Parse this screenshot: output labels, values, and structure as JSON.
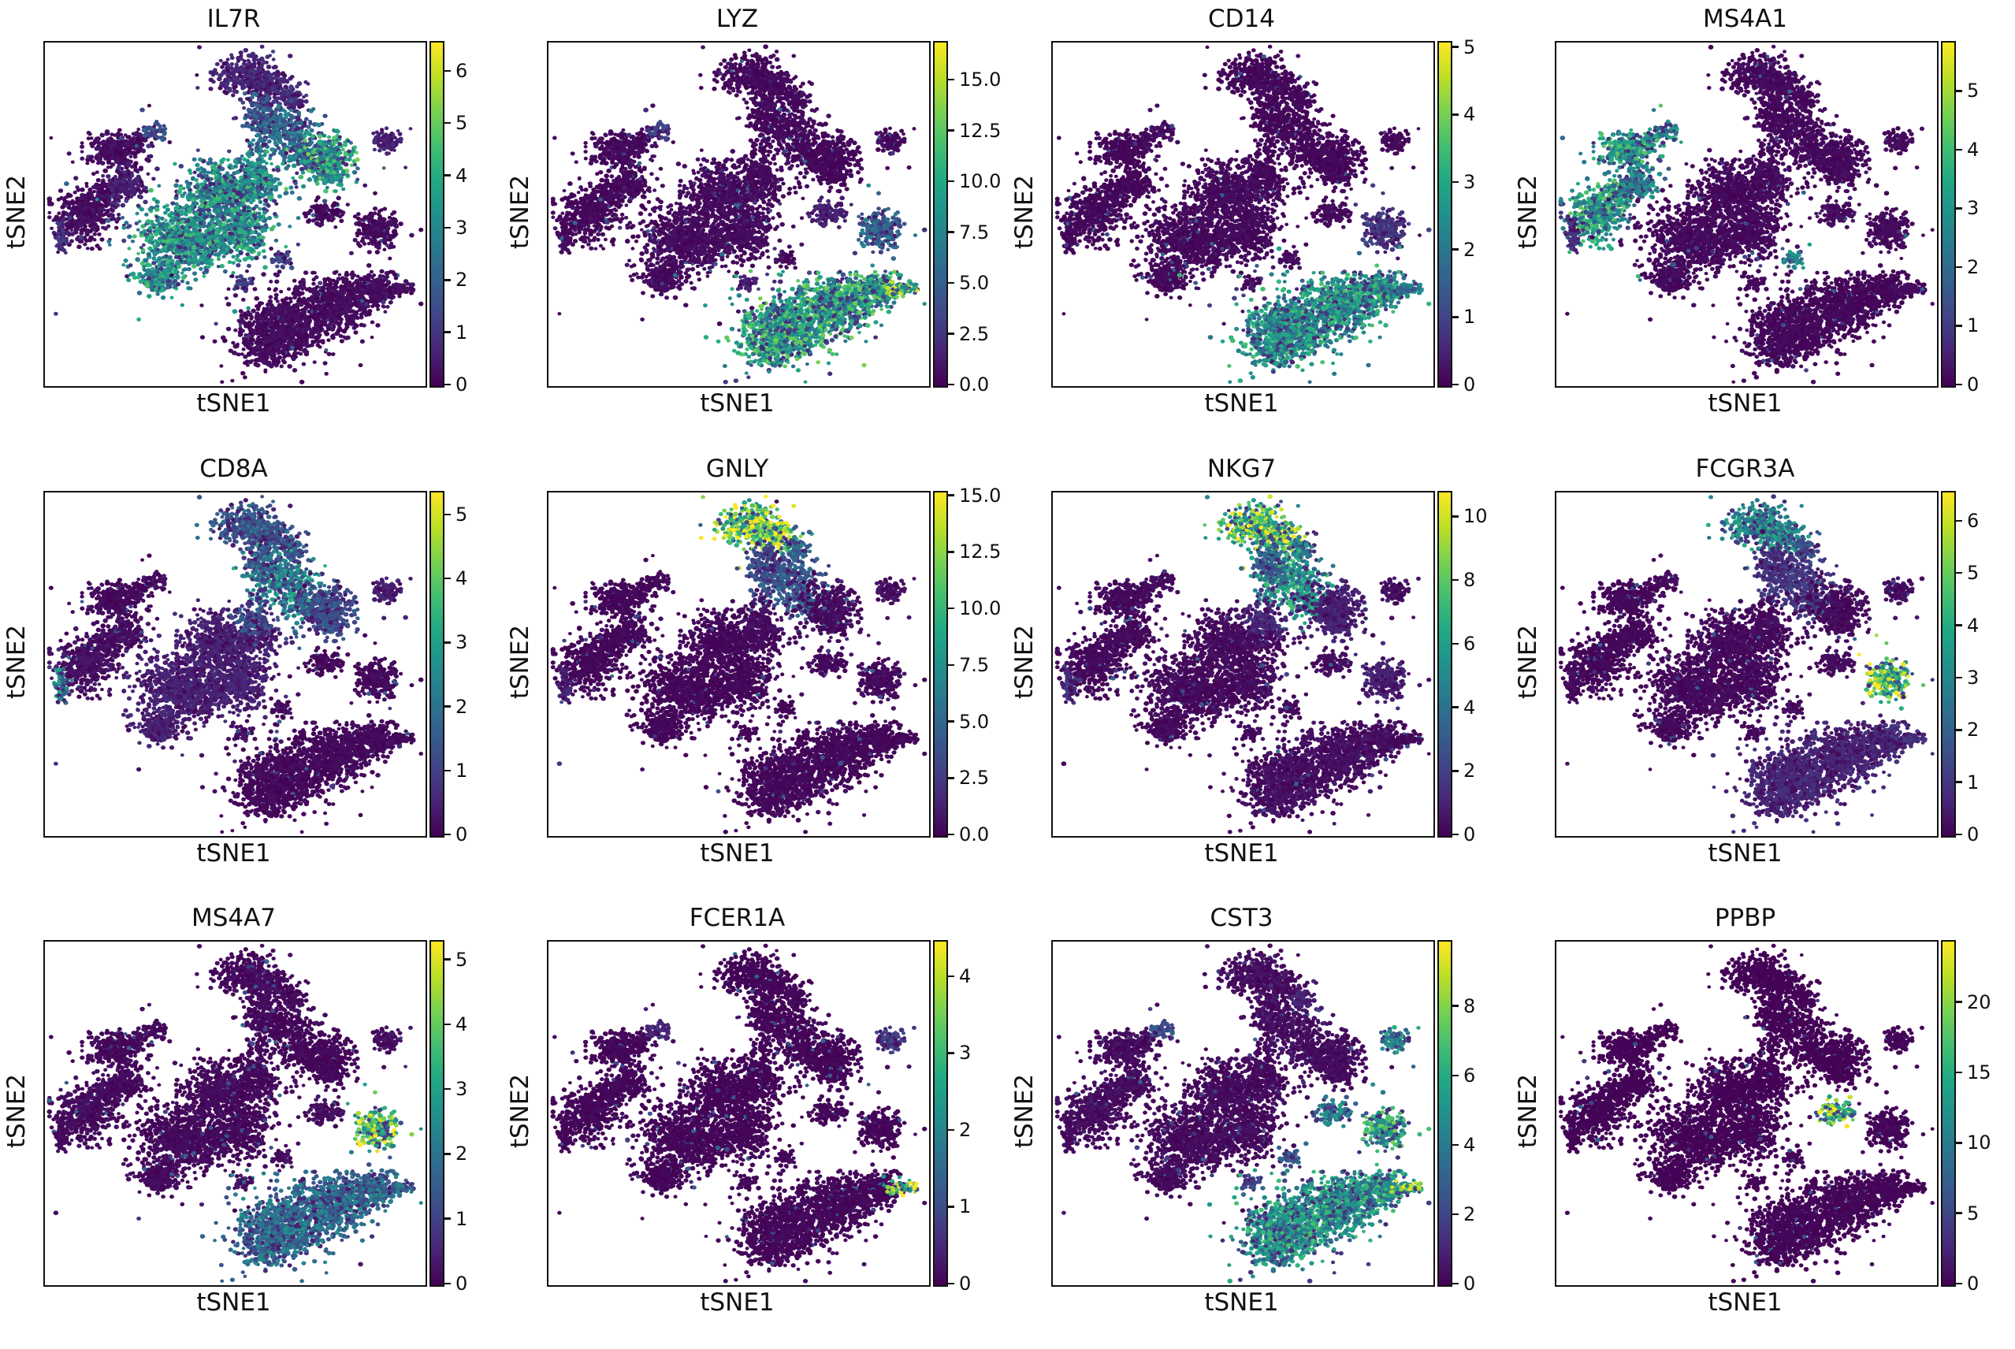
{
  "chart_data": {
    "type": "scatter",
    "description": "Grid of 12 tSNE feature plots of single-cell gene expression; identical 2-D embedding in every panel, points colored by per-gene expression on a viridis scale.",
    "layout": {
      "rows": 3,
      "cols": 4,
      "grid": true,
      "legend_position": "right-colorbar-per-panel"
    },
    "xlabel": "tSNE1",
    "ylabel": "tSNE2",
    "colormap": "viridis",
    "viridis_stops": [
      "#440154",
      "#482475",
      "#414487",
      "#355f8d",
      "#2a788e",
      "#21918c",
      "#22a884",
      "#44bf70",
      "#7ad151",
      "#bddf26",
      "#fde725"
    ],
    "panels": [
      {
        "gene": "IL7R",
        "colorbar_max": 6.57,
        "tick_values": [
          0,
          1,
          2,
          3,
          4,
          5,
          6
        ],
        "tick_labels": [
          "0",
          "1",
          "2",
          "3",
          "4",
          "5",
          "6"
        ]
      },
      {
        "gene": "LYZ",
        "colorbar_max": 16.9,
        "tick_values": [
          0,
          2.5,
          5,
          7.5,
          10,
          12.5,
          15
        ],
        "tick_labels": [
          "0.0",
          "2.5",
          "5.0",
          "7.5",
          "10.0",
          "12.5",
          "15.0"
        ]
      },
      {
        "gene": "CD14",
        "colorbar_max": 5.09,
        "tick_values": [
          0,
          1,
          2,
          3,
          4,
          5
        ],
        "tick_labels": [
          "0",
          "1",
          "2",
          "3",
          "4",
          "5"
        ]
      },
      {
        "gene": "MS4A1",
        "colorbar_max": 5.85,
        "tick_values": [
          0,
          1,
          2,
          3,
          4,
          5
        ],
        "tick_labels": [
          "0",
          "1",
          "2",
          "3",
          "4",
          "5"
        ]
      },
      {
        "gene": "CD8A",
        "colorbar_max": 5.37,
        "tick_values": [
          0,
          1,
          2,
          3,
          4,
          5
        ],
        "tick_labels": [
          "0",
          "1",
          "2",
          "3",
          "4",
          "5"
        ]
      },
      {
        "gene": "GNLY",
        "colorbar_max": 15.2,
        "tick_values": [
          0,
          2.5,
          5,
          7.5,
          10,
          12.5,
          15
        ],
        "tick_labels": [
          "0.0",
          "2.5",
          "5.0",
          "7.5",
          "10.0",
          "12.5",
          "15.0"
        ]
      },
      {
        "gene": "NKG7",
        "colorbar_max": 10.8,
        "tick_values": [
          0,
          2,
          4,
          6,
          8,
          10
        ],
        "tick_labels": [
          "0",
          "2",
          "4",
          "6",
          "8",
          "10"
        ]
      },
      {
        "gene": "FCGR3A",
        "colorbar_max": 6.57,
        "tick_values": [
          0,
          1,
          2,
          3,
          4,
          5,
          6
        ],
        "tick_labels": [
          "0",
          "1",
          "2",
          "3",
          "4",
          "5",
          "6"
        ]
      },
      {
        "gene": "MS4A7",
        "colorbar_max": 5.3,
        "tick_values": [
          0,
          1,
          2,
          3,
          4,
          5
        ],
        "tick_labels": [
          "0",
          "1",
          "2",
          "3",
          "4",
          "5"
        ]
      },
      {
        "gene": "FCER1A",
        "colorbar_max": 4.47,
        "tick_values": [
          0,
          1,
          2,
          3,
          4
        ],
        "tick_labels": [
          "0",
          "1",
          "2",
          "3",
          "4"
        ]
      },
      {
        "gene": "CST3",
        "colorbar_max": 9.9,
        "tick_values": [
          0,
          2,
          4,
          6,
          8
        ],
        "tick_labels": [
          "0",
          "2",
          "4",
          "6",
          "8"
        ]
      },
      {
        "gene": "PPBP",
        "colorbar_max": 24.4,
        "tick_values": [
          0,
          5,
          10,
          15,
          20
        ],
        "tick_labels": [
          "0",
          "5",
          "10",
          "15",
          "20"
        ]
      }
    ],
    "expression_gene_order": [
      "IL7R",
      "LYZ",
      "CD14",
      "MS4A1",
      "CD8A",
      "GNLY",
      "NKG7",
      "FCGR3A",
      "MS4A7",
      "FCER1A",
      "CST3",
      "PPBP"
    ],
    "clusters": [
      {
        "id": "nk-top",
        "parts": [
          [
            0.53,
            0.095,
            0.075,
            0.055,
            300
          ],
          [
            0.6,
            0.13,
            0.05,
            0.04,
            150
          ]
        ],
        "expr": [
          0.12,
          0.05,
          0.04,
          0.05,
          0.3,
          0.85,
          0.8,
          0.5,
          0.06,
          0.03,
          0.08,
          0.02
        ]
      },
      {
        "id": "small-blob-a",
        "parts": [
          [
            0.655,
            0.165,
            0.03,
            0.028,
            90
          ]
        ],
        "expr": [
          0.15,
          0.05,
          0.04,
          0.05,
          0.3,
          0.35,
          0.45,
          0.25,
          0.06,
          0.03,
          0.1,
          0.02
        ]
      },
      {
        "id": "cd8-t",
        "parts": [
          [
            0.62,
            0.25,
            0.08,
            0.065,
            300
          ],
          [
            0.67,
            0.32,
            0.05,
            0.05,
            120
          ]
        ],
        "expr": [
          0.38,
          0.05,
          0.04,
          0.05,
          0.5,
          0.3,
          0.55,
          0.18,
          0.05,
          0.03,
          0.08,
          0.02
        ]
      },
      {
        "id": "memory-t",
        "parts": [
          [
            0.74,
            0.345,
            0.065,
            0.07,
            380
          ]
        ],
        "expr": [
          0.62,
          0.04,
          0.04,
          0.05,
          0.25,
          0.06,
          0.1,
          0.06,
          0.04,
          0.03,
          0.06,
          0.02
        ]
      },
      {
        "id": "top-right-small",
        "parts": [
          [
            0.895,
            0.285,
            0.032,
            0.03,
            90
          ]
        ],
        "expr": [
          0.1,
          0.06,
          0.05,
          0.06,
          0.1,
          0.08,
          0.08,
          0.08,
          0.08,
          0.18,
          0.5,
          0.03
        ]
      },
      {
        "id": "b-upper",
        "parts": [
          [
            0.185,
            0.315,
            0.07,
            0.05,
            280
          ],
          [
            0.245,
            0.29,
            0.03,
            0.03,
            40
          ]
        ],
        "expr": [
          0.07,
          0.05,
          0.04,
          0.58,
          0.05,
          0.04,
          0.05,
          0.04,
          0.05,
          0.04,
          0.07,
          0.02
        ]
      },
      {
        "id": "tiny-upper-mid",
        "parts": [
          [
            0.29,
            0.26,
            0.027,
            0.025,
            60
          ]
        ],
        "expr": [
          0.25,
          0.2,
          0.08,
          0.5,
          0.08,
          0.05,
          0.06,
          0.06,
          0.08,
          0.12,
          0.25,
          0.02
        ]
      },
      {
        "id": "b-main",
        "parts": [
          [
            0.1,
            0.5,
            0.075,
            0.08,
            380
          ],
          [
            0.16,
            0.44,
            0.04,
            0.04,
            100
          ]
        ],
        "expr": [
          0.07,
          0.05,
          0.04,
          0.6,
          0.08,
          0.04,
          0.05,
          0.04,
          0.06,
          0.04,
          0.07,
          0.02
        ]
      },
      {
        "id": "b-arm",
        "parts": [
          [
            0.215,
            0.415,
            0.05,
            0.047,
            160
          ]
        ],
        "expr": [
          0.1,
          0.05,
          0.04,
          0.45,
          0.08,
          0.04,
          0.05,
          0.04,
          0.05,
          0.04,
          0.07,
          0.02
        ]
      },
      {
        "id": "cd4-t-central",
        "parts": [
          [
            0.47,
            0.44,
            0.1,
            0.08,
            500
          ],
          [
            0.37,
            0.57,
            0.13,
            0.1,
            800
          ],
          [
            0.52,
            0.55,
            0.07,
            0.08,
            300
          ],
          [
            0.3,
            0.68,
            0.06,
            0.05,
            200
          ],
          [
            0.56,
            0.42,
            0.05,
            0.06,
            100
          ]
        ],
        "expr": [
          0.55,
          0.06,
          0.05,
          0.05,
          0.1,
          0.04,
          0.06,
          0.05,
          0.05,
          0.03,
          0.06,
          0.02
        ]
      },
      {
        "id": "platelet",
        "parts": [
          [
            0.735,
            0.5,
            0.042,
            0.038,
            110
          ]
        ],
        "expr": [
          0.06,
          0.1,
          0.05,
          0.08,
          0.05,
          0.05,
          0.06,
          0.05,
          0.08,
          0.04,
          0.45,
          0.8
        ]
      },
      {
        "id": "fcgr3a-monocyte",
        "parts": [
          [
            0.875,
            0.545,
            0.048,
            0.052,
            220
          ]
        ],
        "expr": [
          0.06,
          0.35,
          0.18,
          0.05,
          0.05,
          0.06,
          0.1,
          0.78,
          0.8,
          0.04,
          0.62,
          0.03
        ]
      },
      {
        "id": "cd14-monocyte",
        "parts": [
          [
            0.62,
            0.83,
            0.11,
            0.09,
            700
          ],
          [
            0.75,
            0.77,
            0.1,
            0.08,
            600
          ],
          [
            0.86,
            0.72,
            0.06,
            0.05,
            250
          ],
          [
            0.57,
            0.9,
            0.07,
            0.05,
            150
          ]
        ],
        "expr": [
          0.06,
          0.62,
          0.55,
          0.04,
          0.05,
          0.04,
          0.08,
          0.12,
          0.38,
          0.04,
          0.55,
          0.03
        ]
      },
      {
        "id": "dendritic-tail",
        "parts": [
          [
            0.935,
            0.72,
            0.042,
            0.02,
            70
          ]
        ],
        "expr": [
          0.08,
          0.75,
          0.4,
          0.06,
          0.05,
          0.04,
          0.06,
          0.15,
          0.35,
          0.85,
          0.8,
          0.03
        ]
      },
      {
        "id": "sat-mid-right",
        "parts": [
          [
            0.625,
            0.63,
            0.025,
            0.023,
            45
          ]
        ],
        "expr": [
          0.2,
          0.08,
          0.06,
          0.45,
          0.08,
          0.05,
          0.06,
          0.06,
          0.08,
          0.05,
          0.3,
          0.03
        ]
      },
      {
        "id": "sat-low-mid",
        "parts": [
          [
            0.52,
            0.7,
            0.022,
            0.02,
            35
          ]
        ],
        "expr": [
          0.2,
          0.1,
          0.08,
          0.06,
          0.08,
          0.05,
          0.06,
          0.05,
          0.08,
          0.04,
          0.2,
          0.03
        ]
      },
      {
        "id": "bridge-nk-cd8",
        "parts": [
          [
            0.57,
            0.21,
            0.04,
            0.07,
            130
          ]
        ],
        "expr": [
          0.3,
          0.05,
          0.04,
          0.05,
          0.35,
          0.25,
          0.35,
          0.15,
          0.05,
          0.03,
          0.08,
          0.02
        ]
      },
      {
        "id": "bridge-cd8-cd4",
        "parts": [
          [
            0.55,
            0.37,
            0.05,
            0.05,
            120
          ]
        ],
        "expr": [
          0.5,
          0.05,
          0.04,
          0.05,
          0.25,
          0.08,
          0.12,
          0.06,
          0.05,
          0.03,
          0.06,
          0.02
        ]
      },
      {
        "id": "left-edge-strip",
        "parts": [
          [
            0.045,
            0.56,
            0.02,
            0.055,
            70
          ]
        ],
        "expr": [
          0.15,
          0.05,
          0.04,
          0.15,
          0.45,
          0.1,
          0.15,
          0.06,
          0.05,
          0.03,
          0.08,
          0.02
        ]
      }
    ],
    "axis_ticks_shown_on_plot": false
  },
  "style": {
    "background": "#ffffff",
    "spine_color": "#111111",
    "text_color": "#111111",
    "low_color": "#440154",
    "high_color": "#fde725"
  }
}
